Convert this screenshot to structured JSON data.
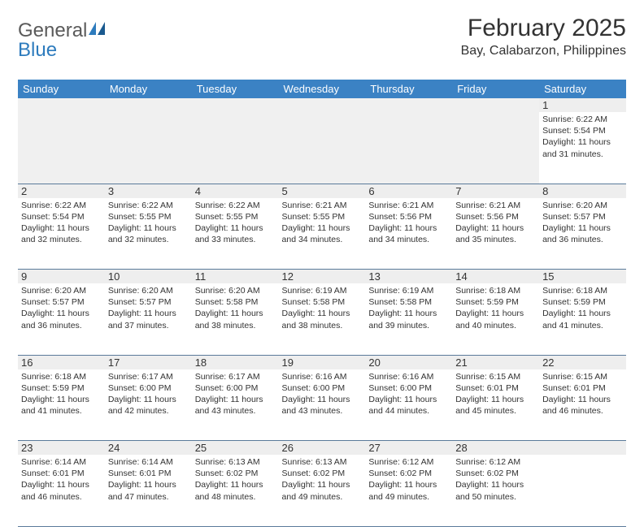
{
  "logo": {
    "general": "General",
    "blue": "Blue"
  },
  "title": "February 2025",
  "location": "Bay, Calabarzon, Philippines",
  "colors": {
    "header_bg": "#3b82c4",
    "header_text": "#ffffff",
    "daynum_bg": "#eeeeee",
    "border": "#5a7a9a",
    "logo_gray": "#5a5a5a",
    "logo_blue": "#2d7bbd"
  },
  "day_headers": [
    "Sunday",
    "Monday",
    "Tuesday",
    "Wednesday",
    "Thursday",
    "Friday",
    "Saturday"
  ],
  "weeks": [
    [
      {
        "num": "",
        "sunrise": "",
        "sunset": "",
        "daylight": ""
      },
      {
        "num": "",
        "sunrise": "",
        "sunset": "",
        "daylight": ""
      },
      {
        "num": "",
        "sunrise": "",
        "sunset": "",
        "daylight": ""
      },
      {
        "num": "",
        "sunrise": "",
        "sunset": "",
        "daylight": ""
      },
      {
        "num": "",
        "sunrise": "",
        "sunset": "",
        "daylight": ""
      },
      {
        "num": "",
        "sunrise": "",
        "sunset": "",
        "daylight": ""
      },
      {
        "num": "1",
        "sunrise": "6:22 AM",
        "sunset": "5:54 PM",
        "daylight": "11 hours and 31 minutes."
      }
    ],
    [
      {
        "num": "2",
        "sunrise": "6:22 AM",
        "sunset": "5:54 PM",
        "daylight": "11 hours and 32 minutes."
      },
      {
        "num": "3",
        "sunrise": "6:22 AM",
        "sunset": "5:55 PM",
        "daylight": "11 hours and 32 minutes."
      },
      {
        "num": "4",
        "sunrise": "6:22 AM",
        "sunset": "5:55 PM",
        "daylight": "11 hours and 33 minutes."
      },
      {
        "num": "5",
        "sunrise": "6:21 AM",
        "sunset": "5:55 PM",
        "daylight": "11 hours and 34 minutes."
      },
      {
        "num": "6",
        "sunrise": "6:21 AM",
        "sunset": "5:56 PM",
        "daylight": "11 hours and 34 minutes."
      },
      {
        "num": "7",
        "sunrise": "6:21 AM",
        "sunset": "5:56 PM",
        "daylight": "11 hours and 35 minutes."
      },
      {
        "num": "8",
        "sunrise": "6:20 AM",
        "sunset": "5:57 PM",
        "daylight": "11 hours and 36 minutes."
      }
    ],
    [
      {
        "num": "9",
        "sunrise": "6:20 AM",
        "sunset": "5:57 PM",
        "daylight": "11 hours and 36 minutes."
      },
      {
        "num": "10",
        "sunrise": "6:20 AM",
        "sunset": "5:57 PM",
        "daylight": "11 hours and 37 minutes."
      },
      {
        "num": "11",
        "sunrise": "6:20 AM",
        "sunset": "5:58 PM",
        "daylight": "11 hours and 38 minutes."
      },
      {
        "num": "12",
        "sunrise": "6:19 AM",
        "sunset": "5:58 PM",
        "daylight": "11 hours and 38 minutes."
      },
      {
        "num": "13",
        "sunrise": "6:19 AM",
        "sunset": "5:58 PM",
        "daylight": "11 hours and 39 minutes."
      },
      {
        "num": "14",
        "sunrise": "6:18 AM",
        "sunset": "5:59 PM",
        "daylight": "11 hours and 40 minutes."
      },
      {
        "num": "15",
        "sunrise": "6:18 AM",
        "sunset": "5:59 PM",
        "daylight": "11 hours and 41 minutes."
      }
    ],
    [
      {
        "num": "16",
        "sunrise": "6:18 AM",
        "sunset": "5:59 PM",
        "daylight": "11 hours and 41 minutes."
      },
      {
        "num": "17",
        "sunrise": "6:17 AM",
        "sunset": "6:00 PM",
        "daylight": "11 hours and 42 minutes."
      },
      {
        "num": "18",
        "sunrise": "6:17 AM",
        "sunset": "6:00 PM",
        "daylight": "11 hours and 43 minutes."
      },
      {
        "num": "19",
        "sunrise": "6:16 AM",
        "sunset": "6:00 PM",
        "daylight": "11 hours and 43 minutes."
      },
      {
        "num": "20",
        "sunrise": "6:16 AM",
        "sunset": "6:00 PM",
        "daylight": "11 hours and 44 minutes."
      },
      {
        "num": "21",
        "sunrise": "6:15 AM",
        "sunset": "6:01 PM",
        "daylight": "11 hours and 45 minutes."
      },
      {
        "num": "22",
        "sunrise": "6:15 AM",
        "sunset": "6:01 PM",
        "daylight": "11 hours and 46 minutes."
      }
    ],
    [
      {
        "num": "23",
        "sunrise": "6:14 AM",
        "sunset": "6:01 PM",
        "daylight": "11 hours and 46 minutes."
      },
      {
        "num": "24",
        "sunrise": "6:14 AM",
        "sunset": "6:01 PM",
        "daylight": "11 hours and 47 minutes."
      },
      {
        "num": "25",
        "sunrise": "6:13 AM",
        "sunset": "6:02 PM",
        "daylight": "11 hours and 48 minutes."
      },
      {
        "num": "26",
        "sunrise": "6:13 AM",
        "sunset": "6:02 PM",
        "daylight": "11 hours and 49 minutes."
      },
      {
        "num": "27",
        "sunrise": "6:12 AM",
        "sunset": "6:02 PM",
        "daylight": "11 hours and 49 minutes."
      },
      {
        "num": "28",
        "sunrise": "6:12 AM",
        "sunset": "6:02 PM",
        "daylight": "11 hours and 50 minutes."
      },
      {
        "num": "",
        "sunrise": "",
        "sunset": "",
        "daylight": ""
      }
    ]
  ],
  "labels": {
    "sunrise": "Sunrise:",
    "sunset": "Sunset:",
    "daylight": "Daylight:"
  }
}
